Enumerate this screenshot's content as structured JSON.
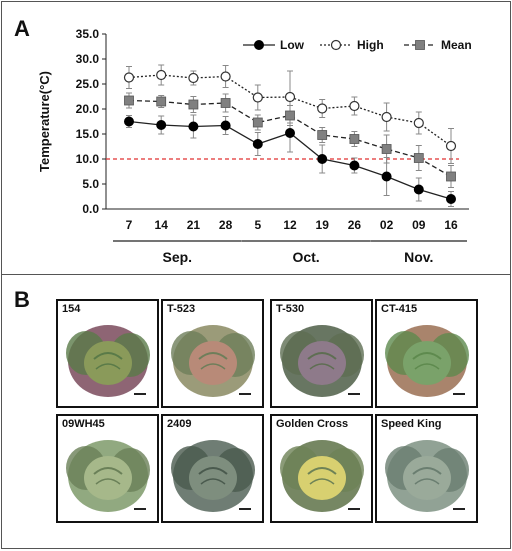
{
  "panel_a_letter": "A",
  "panel_b_letter": "B",
  "chart_data": {
    "type": "line",
    "ylabel": "Temperature(°C)",
    "xlabel": "",
    "categories": [
      "7",
      "14",
      "21",
      "28",
      "5",
      "12",
      "19",
      "26",
      "02",
      "09",
      "16"
    ],
    "month_groups": [
      {
        "label": "Sep.",
        "start": 0,
        "end": 3
      },
      {
        "label": "Oct.",
        "start": 4,
        "end": 7
      },
      {
        "label": "Nov.",
        "start": 8,
        "end": 10
      }
    ],
    "ylim": [
      0,
      35
    ],
    "yticks": [
      "0.0",
      "5.0",
      "10.0",
      "15.0",
      "20.0",
      "25.0",
      "30.0",
      "35.0"
    ],
    "reference_line": {
      "y": 10,
      "color": "#e03030"
    },
    "legend_position": "top-right",
    "series": [
      {
        "name": "Low",
        "style": "solid",
        "marker": "filled-circle",
        "color": "#000000",
        "values": [
          17.5,
          16.8,
          16.5,
          16.7,
          13.0,
          15.2,
          10.0,
          8.7,
          6.5,
          3.9,
          2.0
        ],
        "errors": [
          1.2,
          1.8,
          2.3,
          1.8,
          2.3,
          3.8,
          2.8,
          1.5,
          3.8,
          2.3,
          1.5
        ]
      },
      {
        "name": "High",
        "style": "dotted",
        "marker": "open-circle",
        "color": "#000000",
        "values": [
          26.3,
          26.8,
          26.2,
          26.5,
          22.3,
          22.4,
          20.1,
          20.6,
          18.4,
          17.2,
          12.6
        ],
        "errors": [
          2.2,
          2.0,
          1.4,
          2.2,
          2.5,
          5.2,
          1.8,
          1.8,
          2.8,
          2.2,
          3.5
        ]
      },
      {
        "name": "Mean",
        "style": "dashed",
        "marker": "filled-square",
        "color": "#808080",
        "values": [
          21.7,
          21.5,
          20.9,
          21.2,
          17.3,
          18.7,
          14.8,
          14.0,
          12.0,
          10.2,
          6.5
        ],
        "errors": [
          1.5,
          1.2,
          1.6,
          1.8,
          1.5,
          2.0,
          1.5,
          1.5,
          2.8,
          2.5,
          2.2
        ]
      }
    ]
  },
  "thumbnails": [
    {
      "label": "154",
      "tones": [
        "#7a4a5c",
        "#8a9a5a",
        "#5a7a48"
      ]
    },
    {
      "label": "T-523",
      "tones": [
        "#8a8a62",
        "#b88a78",
        "#6e7e5a"
      ]
    },
    {
      "label": "T-530",
      "tones": [
        "#4e5e46",
        "#8e7a8a",
        "#5e6e52"
      ]
    },
    {
      "label": "CT-415",
      "tones": [
        "#9a6e52",
        "#7aa26a",
        "#5e8a4e"
      ]
    },
    {
      "label": "09WH45",
      "tones": [
        "#7e9a6a",
        "#a6b88a",
        "#6a8058"
      ]
    },
    {
      "label": "2409",
      "tones": [
        "#56665c",
        "#7e8e7e",
        "#4a5a4e"
      ]
    },
    {
      "label": "Golden Cross",
      "tones": [
        "#5e7248",
        "#d8d070",
        "#6e8256"
      ]
    },
    {
      "label": "Speed King",
      "tones": [
        "#7e9282",
        "#9aaa9a",
        "#6a7e70"
      ]
    }
  ]
}
